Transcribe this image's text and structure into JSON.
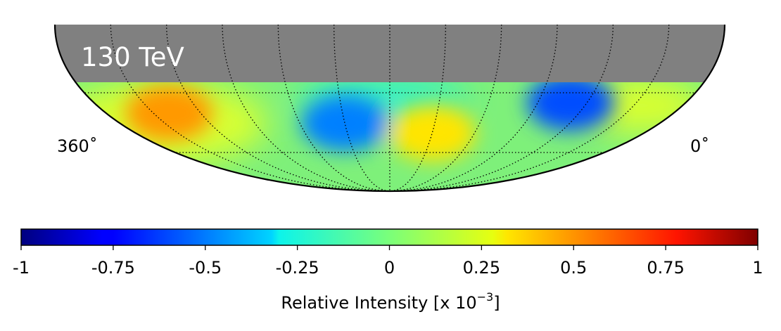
{
  "chart_data": {
    "type": "heatmap",
    "projection": "mollweide-southern-half",
    "energy_label": "130 TeV",
    "ra_left_label": "360˚",
    "ra_right_label": "0˚",
    "masked_band_color": "#808080",
    "colormap": "jet",
    "colorbar": {
      "label_prefix": "Relative Intensity [x 10",
      "label_exponent": "−3",
      "label_suffix": "]",
      "range": [
        -1,
        1
      ],
      "ticks": [
        {
          "value": -1,
          "label": "-1"
        },
        {
          "value": -0.75,
          "label": "-0.75"
        },
        {
          "value": -0.5,
          "label": "-0.5"
        },
        {
          "value": -0.25,
          "label": "-0.25"
        },
        {
          "value": 0,
          "label": "0"
        },
        {
          "value": 0.25,
          "label": "0.25"
        },
        {
          "value": 0.5,
          "label": "0.5"
        },
        {
          "value": 0.75,
          "label": "0.75"
        },
        {
          "value": 1,
          "label": "1"
        }
      ]
    },
    "features": [
      {
        "name": "warm-region-left",
        "ra": 320,
        "dec": -40,
        "relative_intensity": 0.45
      },
      {
        "name": "cold-region-center",
        "ra": 210,
        "dec": -45,
        "relative_intensity": -0.5
      },
      {
        "name": "warm-region-center",
        "ra": 150,
        "dec": -50,
        "relative_intensity": 0.3
      },
      {
        "name": "cold-region-right",
        "ra": 70,
        "dec": -35,
        "relative_intensity": -0.6
      }
    ]
  }
}
